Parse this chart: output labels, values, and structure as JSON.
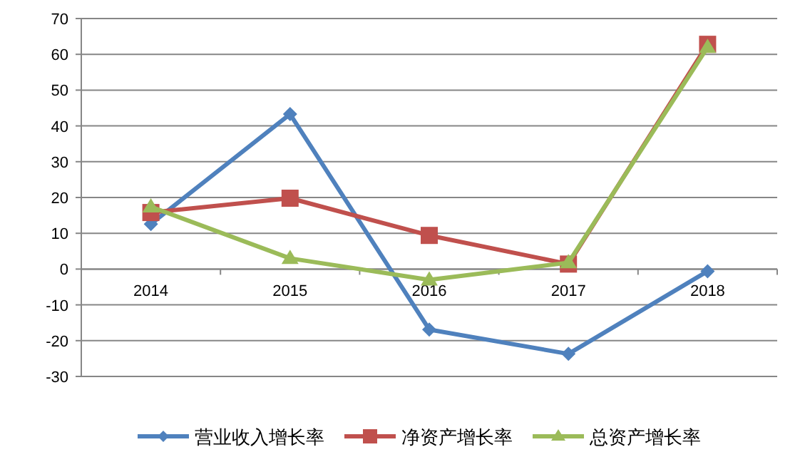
{
  "chart_data": {
    "type": "line",
    "categories": [
      "2014",
      "2015",
      "2016",
      "2017",
      "2018"
    ],
    "series": [
      {
        "name": "营业收入增长率",
        "color": "#4f81bd",
        "marker": "diamond",
        "values": [
          12.6,
          43.3,
          -16.9,
          -23.7,
          -0.6
        ]
      },
      {
        "name": "净资产增长率",
        "color": "#c0504d",
        "marker": "square",
        "values": [
          15.8,
          19.8,
          9.4,
          1.4,
          62.8
        ]
      },
      {
        "name": "总资产增长率",
        "color": "#9bbb59",
        "marker": "triangle",
        "values": [
          17.4,
          3.0,
          -3.0,
          1.8,
          62.0
        ]
      }
    ],
    "ylim": [
      -30,
      70
    ],
    "yticks": [
      -30,
      -20,
      -10,
      0,
      10,
      20,
      30,
      40,
      50,
      60,
      70
    ],
    "grid": "y",
    "legend": "bottom"
  }
}
